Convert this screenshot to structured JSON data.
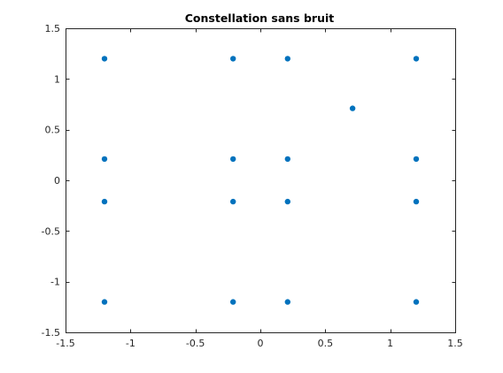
{
  "chart_data": {
    "type": "scatter",
    "title": "Constellation sans bruit",
    "xlabel": "",
    "ylabel": "",
    "xlim": [
      -1.5,
      1.5
    ],
    "ylim": [
      -1.5,
      1.5
    ],
    "grid": false,
    "x_ticks": [
      "-1.5",
      "-1",
      "-0.5",
      "0",
      "0.5",
      "1",
      "1.5"
    ],
    "y_ticks": [
      "1.5",
      "1",
      "0.5",
      "0",
      "-0.5",
      "-1",
      "-1.5"
    ],
    "marker_color": "#0072BD",
    "series": [
      {
        "points": [
          {
            "x": -1.2,
            "y": 1.2
          },
          {
            "x": -0.21,
            "y": 1.2
          },
          {
            "x": 0.21,
            "y": 1.2
          },
          {
            "x": 1.2,
            "y": 1.2
          },
          {
            "x": 0.71,
            "y": 0.71
          },
          {
            "x": -1.2,
            "y": 0.21
          },
          {
            "x": -0.21,
            "y": 0.21
          },
          {
            "x": 0.21,
            "y": 0.21
          },
          {
            "x": 1.2,
            "y": 0.21
          },
          {
            "x": -1.2,
            "y": -0.21
          },
          {
            "x": -0.21,
            "y": -0.21
          },
          {
            "x": 0.21,
            "y": -0.21
          },
          {
            "x": 1.2,
            "y": -0.21
          },
          {
            "x": -1.2,
            "y": -1.2
          },
          {
            "x": -0.21,
            "y": -1.2
          },
          {
            "x": 0.21,
            "y": -1.2
          },
          {
            "x": 1.2,
            "y": -1.2
          }
        ]
      }
    ]
  }
}
